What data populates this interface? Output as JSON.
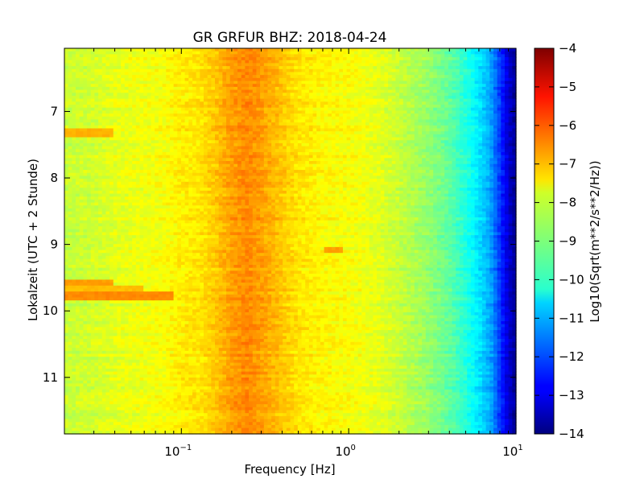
{
  "chart_data": {
    "type": "heatmap",
    "title": "GR GRFUR BHZ: 2018-04-24",
    "xlabel": "Frequency [Hz]",
    "ylabel": "Lokalzeit (UTC + 2 Stunde)",
    "x_scale": "log",
    "xlim": [
      0.02,
      10
    ],
    "ylim": [
      11.85,
      6.05
    ],
    "x_ticks": [
      {
        "value": 0.1,
        "base": "10",
        "exp": "−1"
      },
      {
        "value": 1,
        "base": "10",
        "exp": "0"
      },
      {
        "value": 10,
        "base": "10",
        "exp": "1"
      }
    ],
    "y_ticks": [
      {
        "value": 7,
        "label": "7"
      },
      {
        "value": 8,
        "label": "8"
      },
      {
        "value": 9,
        "label": "9"
      },
      {
        "value": 10,
        "label": "10"
      },
      {
        "value": 11,
        "label": "11"
      }
    ],
    "colorbar": {
      "label": "Log10(Sqrt(m**2/s**2/Hz))",
      "range": [
        -14,
        -4
      ],
      "colormap": "jet",
      "ticks": [
        "−4",
        "−5",
        "−6",
        "−7",
        "−8",
        "−9",
        "−10",
        "−11",
        "−12",
        "−13",
        "−14"
      ]
    },
    "spectrum_profile": {
      "frequency_hz": [
        0.02,
        0.03,
        0.04,
        0.06,
        0.08,
        0.1,
        0.13,
        0.16,
        0.2,
        0.25,
        0.3,
        0.4,
        0.5,
        0.7,
        1,
        1.5,
        2,
        3,
        4,
        5,
        6,
        7,
        8,
        9,
        10
      ],
      "log10_amplitude": [
        -8.3,
        -8.2,
        -8.0,
        -7.9,
        -7.8,
        -7.6,
        -7.5,
        -7.2,
        -6.8,
        -6.6,
        -6.8,
        -7.2,
        -7.5,
        -7.7,
        -7.8,
        -8.0,
        -8.3,
        -8.8,
        -9.3,
        -9.9,
        -10.5,
        -11.1,
        -12.2,
        -13.2,
        -13.8
      ]
    },
    "events": [
      {
        "time": 7.32,
        "fmax": 0.04,
        "value": -7.0
      },
      {
        "time": 9.6,
        "fmax": 0.04,
        "value": -6.8
      },
      {
        "time": 9.65,
        "fmax": 0.06,
        "value": -7.1
      },
      {
        "time": 9.77,
        "fmax": 0.09,
        "value": -6.6
      },
      {
        "time": 9.1,
        "fmin": 0.7,
        "fmax": 0.9,
        "value": -6.8
      }
    ]
  }
}
